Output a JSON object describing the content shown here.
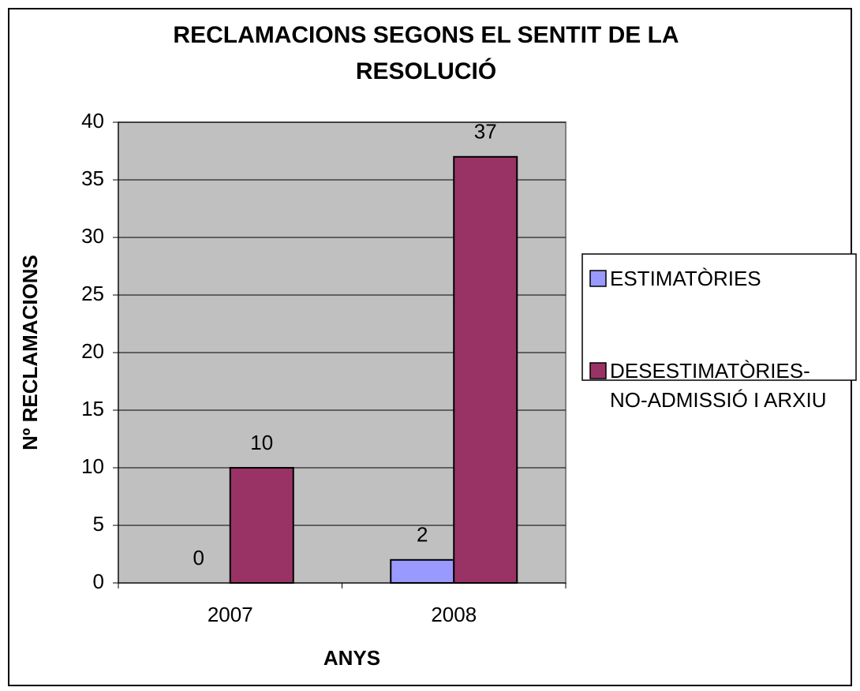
{
  "chart_data": {
    "type": "bar",
    "title": "RECLAMACIONS SEGONS EL SENTIT DE LA RESOLUCIÓ",
    "x_label": "ANYS",
    "y_label": "Nº RECLAMACIONS",
    "categories": [
      "2007",
      "2008"
    ],
    "series": [
      {
        "name": "ESTIMATÒRIES",
        "color": "#9999ff",
        "values": [
          0,
          2
        ]
      },
      {
        "name": "DESESTIMATÒRIES-NO-ADMISSIÓ I ARXIU",
        "color": "#993366",
        "values": [
          10,
          37
        ]
      }
    ],
    "ylim": [
      0,
      40
    ],
    "yticks": [
      0,
      5,
      10,
      15,
      20,
      25,
      30,
      35,
      40
    ],
    "grid": true,
    "legend": "right"
  }
}
